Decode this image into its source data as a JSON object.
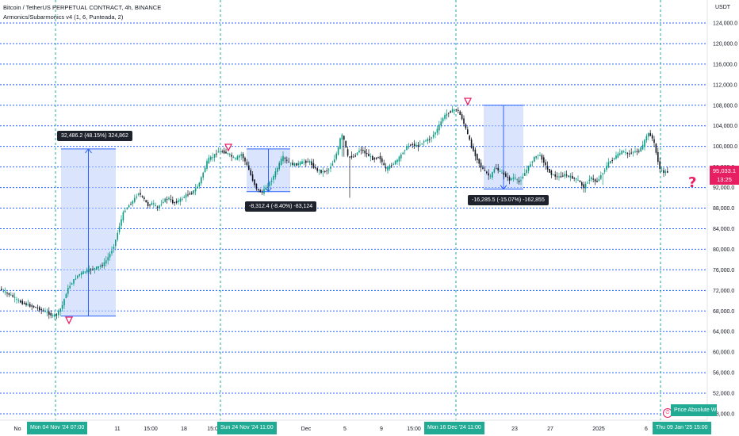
{
  "legend": {
    "symbol": "Bitcoin / TetherUS PERPETUAL CONTRACT, 4h, BINANCE",
    "indicator": "Armonics/Subarmonics v4 (1, 6, Punteada, 2)"
  },
  "currency_label": "USDT",
  "current_price": {
    "value": "95,033.1",
    "countdown": "13:25"
  },
  "question_mark": "?",
  "measurements": [
    {
      "label": "32,486.2 (48.15%) 324,862"
    },
    {
      "label": "-8,312.4 (-8.40%) -83,124"
    },
    {
      "label": "-16,285.5 (-15.07%) -162,855"
    }
  ],
  "time_tags": [
    {
      "label": "Mon 04 Nov '24   07:00"
    },
    {
      "label": "Sun 24 Nov '24   11:00"
    },
    {
      "label": "Mon 16 Dec '24   11:00"
    },
    {
      "label": "Thu 09 Jan '25   15:00"
    }
  ],
  "alert": {
    "label": "Price Absolute W"
  },
  "colors": {
    "up": "#089981",
    "down": "#131722",
    "harmonic_line": "#2962ff",
    "measure_fill": "#bbd0fb",
    "price_tag": "#e81e63",
    "time_tag": "#22ab94"
  },
  "chart_data": {
    "type": "candlestick",
    "title": "Bitcoin / TetherUS PERPETUAL CONTRACT, 4h, BINANCE",
    "y_unit": "USDT",
    "ylim": [
      47000,
      126500
    ],
    "y_ticks": [
      "48,000.0",
      "52,000.0",
      "56,000.0",
      "60,000.0",
      "64,000.0",
      "68,000.0",
      "72,000.0",
      "76,000.0",
      "80,000.0",
      "84,000.0",
      "88,000.0",
      "92,000.0",
      "96,000.0",
      "100,000.0",
      "104,000.0",
      "108,000.0",
      "112,000.0",
      "116,000.0",
      "120,000.0",
      "124,000.0"
    ],
    "x_ticks": [
      "No",
      "11",
      "15:00",
      "18",
      "15:00",
      "Dec",
      "5",
      "9",
      "15:00",
      "23",
      "27",
      "2025",
      "6"
    ],
    "harmonic_levels": [
      48000,
      52000,
      56000,
      60000,
      64000,
      68000,
      72000,
      76000,
      80000,
      84000,
      88000,
      92000,
      96000,
      100000,
      104000,
      108000,
      112000,
      116000,
      120000,
      124000
    ],
    "price_path": [
      [
        0,
        72400
      ],
      [
        8,
        71600
      ],
      [
        16,
        71000
      ],
      [
        24,
        70000
      ],
      [
        32,
        69400
      ],
      [
        40,
        69000
      ],
      [
        48,
        68600
      ],
      [
        56,
        68000
      ],
      [
        62,
        67600
      ],
      [
        68,
        67000
      ],
      [
        74,
        67500
      ],
      [
        80,
        69000
      ],
      [
        86,
        72000
      ],
      [
        92,
        73500
      ],
      [
        100,
        75000
      ],
      [
        110,
        75800
      ],
      [
        120,
        76200
      ],
      [
        132,
        77000
      ],
      [
        140,
        79000
      ],
      [
        146,
        81000
      ],
      [
        152,
        84500
      ],
      [
        158,
        87500
      ],
      [
        164,
        88500
      ],
      [
        170,
        89500
      ],
      [
        176,
        91000
      ],
      [
        182,
        90000
      ],
      [
        188,
        88500
      ],
      [
        194,
        89000
      ],
      [
        200,
        88000
      ],
      [
        208,
        89500
      ],
      [
        214,
        90000
      ],
      [
        220,
        89000
      ],
      [
        228,
        89500
      ],
      [
        236,
        90500
      ],
      [
        244,
        91000
      ],
      [
        252,
        92500
      ],
      [
        258,
        95000
      ],
      [
        264,
        97500
      ],
      [
        270,
        98000
      ],
      [
        276,
        99000
      ],
      [
        282,
        99000
      ],
      [
        290,
        98500
      ],
      [
        298,
        97500
      ],
      [
        306,
        98500
      ],
      [
        314,
        96000
      ],
      [
        320,
        93500
      ],
      [
        326,
        91500
      ],
      [
        332,
        91000
      ],
      [
        340,
        92500
      ],
      [
        346,
        94000
      ],
      [
        352,
        96000
      ],
      [
        358,
        98000
      ],
      [
        364,
        97000
      ],
      [
        370,
        96500
      ],
      [
        376,
        96500
      ],
      [
        384,
        97000
      ],
      [
        392,
        97000
      ],
      [
        400,
        95500
      ],
      [
        408,
        95000
      ],
      [
        416,
        95500
      ],
      [
        422,
        97000
      ],
      [
        428,
        99500
      ],
      [
        432,
        102500
      ],
      [
        436,
        101000
      ],
      [
        440,
        98000
      ],
      [
        448,
        98000
      ],
      [
        456,
        99500
      ],
      [
        464,
        98500
      ],
      [
        472,
        97500
      ],
      [
        480,
        98000
      ],
      [
        488,
        95500
      ],
      [
        496,
        96500
      ],
      [
        504,
        97500
      ],
      [
        512,
        99500
      ],
      [
        520,
        100500
      ],
      [
        528,
        100000
      ],
      [
        536,
        101000
      ],
      [
        544,
        101500
      ],
      [
        552,
        103000
      ],
      [
        560,
        105500
      ],
      [
        566,
        106500
      ],
      [
        572,
        107000
      ],
      [
        578,
        107200
      ],
      [
        584,
        105500
      ],
      [
        590,
        103000
      ],
      [
        596,
        100000
      ],
      [
        602,
        98000
      ],
      [
        608,
        96000
      ],
      [
        614,
        95000
      ],
      [
        620,
        94000
      ],
      [
        626,
        96000
      ],
      [
        632,
        95000
      ],
      [
        638,
        94500
      ],
      [
        644,
        93500
      ],
      [
        650,
        94000
      ],
      [
        656,
        93000
      ],
      [
        662,
        94500
      ],
      [
        668,
        96000
      ],
      [
        674,
        97500
      ],
      [
        680,
        98500
      ],
      [
        686,
        97500
      ],
      [
        692,
        95500
      ],
      [
        698,
        94500
      ],
      [
        706,
        94000
      ],
      [
        714,
        94500
      ],
      [
        722,
        94000
      ],
      [
        730,
        93500
      ],
      [
        738,
        92000
      ],
      [
        746,
        94000
      ],
      [
        754,
        93000
      ],
      [
        762,
        95000
      ],
      [
        770,
        97000
      ],
      [
        778,
        98000
      ],
      [
        786,
        99000
      ],
      [
        794,
        98500
      ],
      [
        800,
        99000
      ],
      [
        806,
        99000
      ],
      [
        812,
        100000
      ],
      [
        818,
        102500
      ],
      [
        822,
        102200
      ],
      [
        826,
        101000
      ],
      [
        830,
        98000
      ],
      [
        834,
        95500
      ],
      [
        838,
        95000
      ],
      [
        842,
        95033
      ]
    ],
    "measurements": [
      {
        "from": 67000,
        "to": 99500,
        "change": "32,486.2 (48.15%) 324,862"
      },
      {
        "from": 99500,
        "to": 91200,
        "change": "-8,312.4 (-8.40%) -83,124"
      },
      {
        "from": 108000,
        "to": 91700,
        "change": "-16,285.5 (-15.07%) -162,855"
      }
    ],
    "current_price": 95033.1,
    "grid": false
  }
}
